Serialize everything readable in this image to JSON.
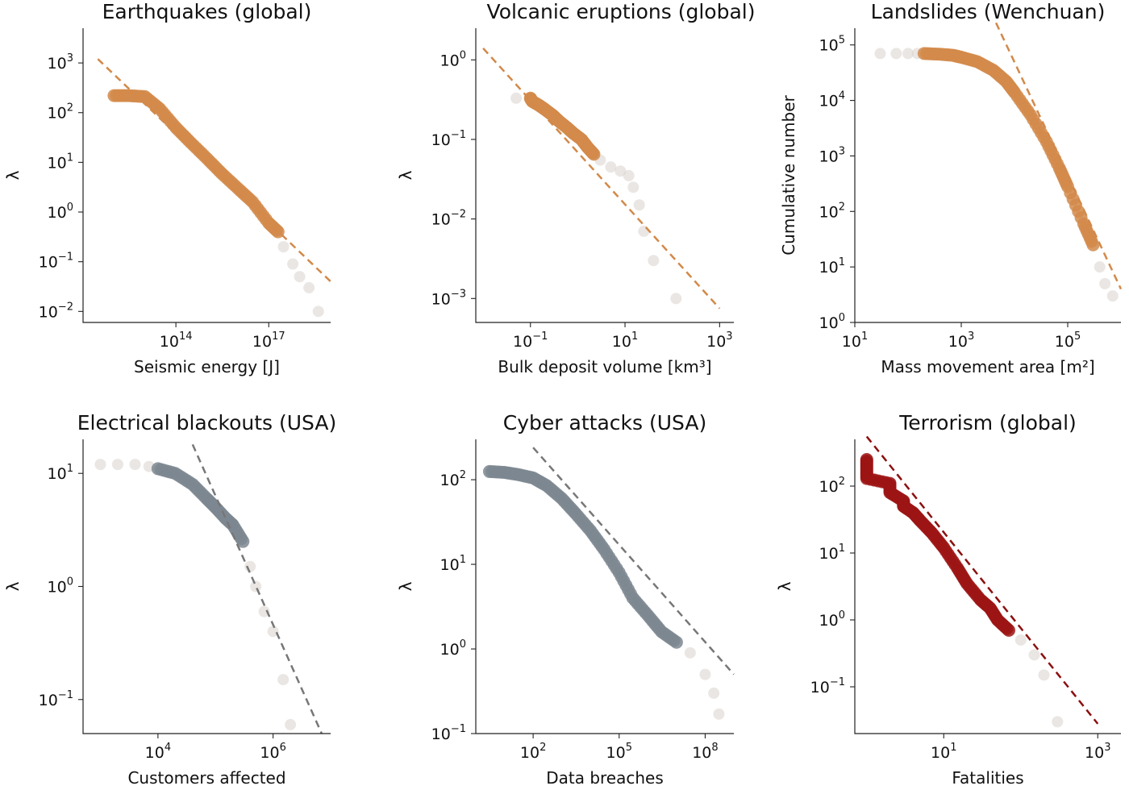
{
  "chart_data": [
    {
      "type": "scatter",
      "title": "Earthquakes (global)",
      "xlabel": "Seismic energy [J]",
      "ylabel": "λ",
      "xscale": "log",
      "yscale": "log",
      "xlim": [
        100000000000.0,
        1e+19
      ],
      "ylim": [
        0.006,
        5000
      ],
      "x_ticks": [
        {
          "base": "10",
          "exp": "14",
          "value": 100000000000000.0
        },
        {
          "base": "10",
          "exp": "17",
          "value": 1e+17
        }
      ],
      "y_ticks": [
        {
          "base": "10",
          "exp": "−2",
          "value": 0.01
        },
        {
          "base": "10",
          "exp": "−1",
          "value": 0.1
        },
        {
          "base": "10",
          "exp": "0",
          "value": 1
        },
        {
          "base": "10",
          "exp": "1",
          "value": 10
        },
        {
          "base": "10",
          "exp": "2",
          "value": 100
        },
        {
          "base": "10",
          "exp": "3",
          "value": 1000
        }
      ],
      "color": "#d2894a",
      "series": [
        {
          "x": [
            1000000000000.0,
            3000000000000.0,
            10000000000000.0,
            30000000000000.0,
            100000000000000.0,
            300000000000000.0,
            1000000000000000.0,
            3000000000000000.0,
            1e+16,
            3e+16,
            1e+17,
            2e+17
          ],
          "y": [
            220,
            220,
            210,
            120,
            50,
            25,
            12,
            6,
            3,
            1.6,
            0.6,
            0.4
          ]
        }
      ],
      "tail": {
        "x": [
          3e+17,
          6e+17,
          1e+18,
          2e+18,
          4e+18
        ],
        "y": [
          0.2,
          0.09,
          0.05,
          0.03,
          0.01
        ]
      },
      "fit": {
        "x": [
          300000000000.0,
          1e+19
        ],
        "y": [
          1200,
          0.04
        ]
      }
    },
    {
      "type": "scatter",
      "title": "Volcanic eruptions (global)",
      "xlabel": "Bulk deposit volume [km³]",
      "ylabel": "λ",
      "xscale": "log",
      "yscale": "log",
      "xlim": [
        0.007,
        2000
      ],
      "ylim": [
        0.0005,
        2.5
      ],
      "x_ticks": [
        {
          "base": "10",
          "exp": "−1",
          "value": 0.1
        },
        {
          "base": "10",
          "exp": "1",
          "value": 10
        },
        {
          "base": "10",
          "exp": "3",
          "value": 1000
        }
      ],
      "y_ticks": [
        {
          "base": "10",
          "exp": "−3",
          "value": 0.001
        },
        {
          "base": "10",
          "exp": "−2",
          "value": 0.01
        },
        {
          "base": "10",
          "exp": "−1",
          "value": 0.1
        },
        {
          "base": "10",
          "exp": "0",
          "value": 1
        }
      ],
      "color": "#d2894a",
      "series": [
        {
          "x": [
            0.1,
            0.11,
            0.15,
            0.2,
            0.3,
            0.4,
            0.6,
            0.8,
            1.2,
            1.6,
            2.2
          ],
          "y": [
            0.33,
            0.3,
            0.27,
            0.24,
            0.2,
            0.17,
            0.14,
            0.12,
            0.1,
            0.08,
            0.065
          ]
        }
      ],
      "tail": {
        "x": [
          0.05,
          3,
          5,
          8,
          12,
          15,
          20,
          25,
          40,
          120
        ],
        "y": [
          0.33,
          0.055,
          0.045,
          0.04,
          0.035,
          0.025,
          0.015,
          0.007,
          0.003,
          0.001
        ]
      },
      "fit": {
        "x": [
          0.01,
          1000
        ],
        "y": [
          1.4,
          0.00075
        ]
      }
    },
    {
      "type": "scatter",
      "title": "Landslides (Wenchuan)",
      "xlabel": "Mass movement area [m²]",
      "ylabel": "Cumulative number",
      "xscale": "log",
      "yscale": "log",
      "xlim": [
        10,
        1000000
      ],
      "ylim": [
        1,
        200000
      ],
      "x_ticks": [
        {
          "base": "10",
          "exp": "1",
          "value": 10
        },
        {
          "base": "10",
          "exp": "3",
          "value": 1000
        },
        {
          "base": "10",
          "exp": "5",
          "value": 100000
        }
      ],
      "y_ticks": [
        {
          "base": "10",
          "exp": "0",
          "value": 1
        },
        {
          "base": "10",
          "exp": "1",
          "value": 10
        },
        {
          "base": "10",
          "exp": "2",
          "value": 100
        },
        {
          "base": "10",
          "exp": "3",
          "value": 1000
        },
        {
          "base": "10",
          "exp": "4",
          "value": 10000
        },
        {
          "base": "10",
          "exp": "5",
          "value": 100000
        }
      ],
      "color": "#d2894a",
      "series": [
        {
          "x": [
            200,
            400,
            700,
            1000,
            2000,
            4000,
            7000,
            10000,
            20000,
            40000,
            70000,
            100000,
            200000,
            300000
          ],
          "y": [
            70000,
            68000,
            65000,
            60000,
            50000,
            35000,
            22000,
            14000,
            5500,
            1800,
            600,
            280,
            60,
            25
          ]
        }
      ],
      "tail": {
        "x": [
          30,
          60,
          100,
          150,
          400000,
          500000,
          700000
        ],
        "y": [
          70000,
          70000,
          70000,
          70000,
          10,
          5,
          3
        ]
      },
      "fit": {
        "x": [
          4500,
          1000000
        ],
        "y": [
          250000,
          4
        ]
      }
    },
    {
      "type": "scatter",
      "title": "Electrical blackouts (USA)",
      "xlabel": "Customers affected",
      "ylabel": "λ",
      "xscale": "log",
      "yscale": "log",
      "xlim": [
        500,
        10000000
      ],
      "ylim": [
        0.05,
        20
      ],
      "x_ticks": [
        {
          "base": "10",
          "exp": "4",
          "value": 10000
        },
        {
          "base": "10",
          "exp": "6",
          "value": 1000000
        }
      ],
      "y_ticks": [
        {
          "base": "10",
          "exp": "−1",
          "value": 0.1
        },
        {
          "base": "10",
          "exp": "0",
          "value": 1
        },
        {
          "base": "10",
          "exp": "1",
          "value": 10
        }
      ],
      "color": "#7d8790",
      "series": [
        {
          "x": [
            10000,
            20000,
            40000,
            70000,
            100000,
            150000,
            200000,
            300000
          ],
          "y": [
            11,
            10,
            8,
            6,
            5,
            4,
            3.5,
            2.5
          ]
        }
      ],
      "tail": {
        "x": [
          1000,
          2000,
          4000,
          7000,
          400000,
          500000,
          700000,
          1000000,
          1500000,
          2000000
        ],
        "y": [
          12,
          12,
          12,
          11.5,
          1.5,
          1,
          0.6,
          0.4,
          0.15,
          0.06
        ]
      },
      "fit": {
        "x": [
          40000,
          7000000
        ],
        "y": [
          18,
          0.05
        ]
      }
    },
    {
      "type": "scatter",
      "title": "Cyber attacks (USA)",
      "xlabel": "Data breaches",
      "ylabel": "λ",
      "xscale": "log",
      "yscale": "log",
      "xlim": [
        1,
        1000000000
      ],
      "ylim": [
        0.1,
        300
      ],
      "x_ticks": [
        {
          "base": "10",
          "exp": "2",
          "value": 100
        },
        {
          "base": "10",
          "exp": "5",
          "value": 100000
        },
        {
          "base": "10",
          "exp": "8",
          "value": 100000000
        }
      ],
      "y_ticks": [
        {
          "base": "10",
          "exp": "−1",
          "value": 0.1
        },
        {
          "base": "10",
          "exp": "0",
          "value": 1
        },
        {
          "base": "10",
          "exp": "1",
          "value": 10
        },
        {
          "base": "10",
          "exp": "2",
          "value": 100
        }
      ],
      "color": "#7d8790",
      "series": [
        {
          "x": [
            3,
            10,
            30,
            100,
            300,
            1000,
            3000,
            10000,
            30000,
            100000,
            300000,
            1000000,
            3000000,
            10000000
          ],
          "y": [
            125,
            122,
            115,
            105,
            85,
            60,
            40,
            25,
            15,
            8,
            4,
            2.5,
            1.6,
            1.2
          ]
        }
      ],
      "tail": {
        "x": [
          30000000,
          100000000,
          200000000,
          300000000
        ],
        "y": [
          0.9,
          0.5,
          0.3,
          0.17
        ]
      },
      "fit": {
        "x": [
          100,
          1000000000
        ],
        "y": [
          240,
          0.5
        ]
      }
    },
    {
      "type": "scatter",
      "title": "Terrorism (global)",
      "xlabel": "Fatalities",
      "ylabel": "λ",
      "xscale": "log",
      "yscale": "log",
      "xlim": [
        0.7,
        2000
      ],
      "ylim": [
        0.02,
        500
      ],
      "x_ticks": [
        {
          "base": "10",
          "exp": "1",
          "value": 10
        },
        {
          "base": "10",
          "exp": "3",
          "value": 1000
        }
      ],
      "y_ticks": [
        {
          "base": "10",
          "exp": "−1",
          "value": 0.1
        },
        {
          "base": "10",
          "exp": "0",
          "value": 1
        },
        {
          "base": "10",
          "exp": "1",
          "value": 10
        },
        {
          "base": "10",
          "exp": "2",
          "value": 100
        }
      ],
      "color": "#9c1414",
      "series": [
        {
          "x": [
            1,
            1,
            1,
            2,
            2,
            3,
            3,
            4,
            5,
            7,
            10,
            15,
            20,
            30,
            40,
            50,
            70
          ],
          "y": [
            250,
            180,
            130,
            110,
            80,
            60,
            50,
            40,
            30,
            20,
            12,
            6,
            3.5,
            2,
            1.5,
            1,
            0.7
          ]
        }
      ],
      "tail": {
        "x": [
          100,
          150,
          200,
          300
        ],
        "y": [
          0.5,
          0.3,
          0.15,
          0.03
        ]
      },
      "fit": {
        "x": [
          1,
          1000
        ],
        "y": [
          550,
          0.028
        ]
      }
    }
  ]
}
